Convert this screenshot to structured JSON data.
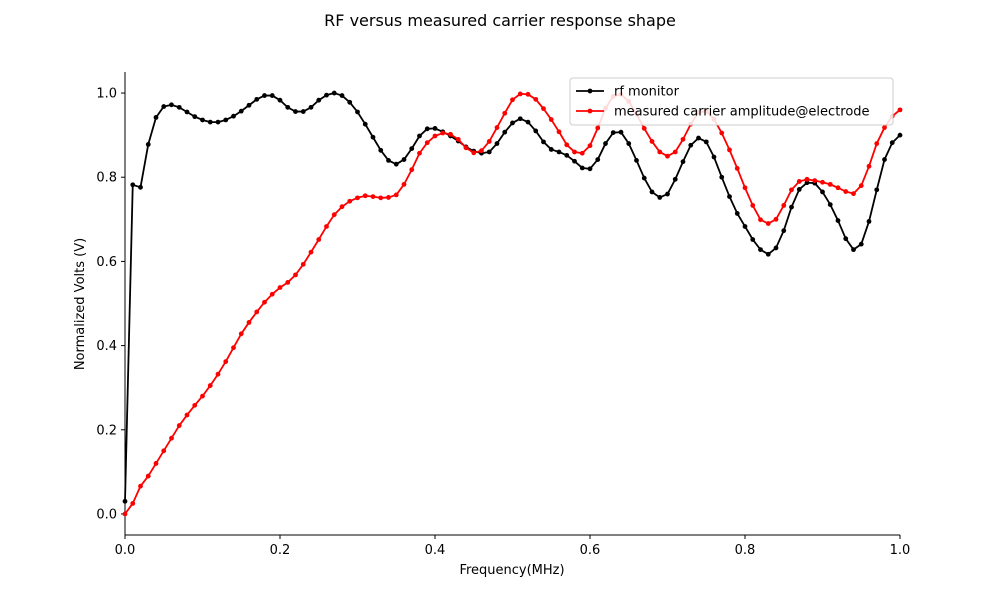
{
  "chart_data": {
    "type": "line",
    "title": "RF versus measured carrier response shape",
    "xlabel": "Frequency(MHz)",
    "ylabel": "Normalized Volts (V)",
    "xlim": [
      0,
      1.0
    ],
    "ylim": [
      -0.05,
      1.05
    ],
    "grid": false,
    "legend_position": "top-right",
    "x_ticks": [
      "0.0",
      "0.2",
      "0.4",
      "0.6",
      "0.8",
      "1.0"
    ],
    "y_ticks": [
      "0.0",
      "0.2",
      "0.4",
      "0.6",
      "0.8",
      "1.0"
    ],
    "x": [
      0.0,
      0.01,
      0.02,
      0.03,
      0.04,
      0.05,
      0.06,
      0.07,
      0.08,
      0.09,
      0.1,
      0.11,
      0.12,
      0.13,
      0.14,
      0.15,
      0.16,
      0.17,
      0.18,
      0.19,
      0.2,
      0.21,
      0.22,
      0.23,
      0.24,
      0.25,
      0.26,
      0.27,
      0.28,
      0.29,
      0.3,
      0.31,
      0.32,
      0.33,
      0.34,
      0.35,
      0.36,
      0.37,
      0.38,
      0.39,
      0.4,
      0.41,
      0.42,
      0.43,
      0.44,
      0.45,
      0.46,
      0.47,
      0.48,
      0.49,
      0.5,
      0.51,
      0.52,
      0.53,
      0.54,
      0.55,
      0.56,
      0.57,
      0.58,
      0.59,
      0.6,
      0.61,
      0.62,
      0.63,
      0.64,
      0.65,
      0.66,
      0.67,
      0.68,
      0.69,
      0.7,
      0.71,
      0.72,
      0.73,
      0.74,
      0.75,
      0.76,
      0.77,
      0.78,
      0.79,
      0.8,
      0.81,
      0.82,
      0.83,
      0.84,
      0.85,
      0.86,
      0.87,
      0.88,
      0.89,
      0.9,
      0.91,
      0.92,
      0.93,
      0.94,
      0.95,
      0.96,
      0.97,
      0.98,
      0.99,
      1.0
    ],
    "series": [
      {
        "name": "rf monitor",
        "color": "#000000",
        "values": [
          0.03,
          0.782,
          0.776,
          0.878,
          0.942,
          0.968,
          0.972,
          0.966,
          0.955,
          0.944,
          0.936,
          0.931,
          0.931,
          0.936,
          0.945,
          0.957,
          0.971,
          0.985,
          0.994,
          0.994,
          0.983,
          0.966,
          0.956,
          0.956,
          0.966,
          0.983,
          0.995,
          1.0,
          0.994,
          0.978,
          0.955,
          0.926,
          0.895,
          0.864,
          0.84,
          0.831,
          0.842,
          0.868,
          0.898,
          0.915,
          0.916,
          0.908,
          0.898,
          0.886,
          0.872,
          0.862,
          0.857,
          0.86,
          0.88,
          0.907,
          0.929,
          0.939,
          0.931,
          0.91,
          0.884,
          0.866,
          0.86,
          0.852,
          0.838,
          0.822,
          0.82,
          0.842,
          0.88,
          0.906,
          0.907,
          0.88,
          0.84,
          0.798,
          0.765,
          0.752,
          0.76,
          0.795,
          0.837,
          0.876,
          0.893,
          0.884,
          0.848,
          0.8,
          0.754,
          0.714,
          0.683,
          0.652,
          0.628,
          0.617,
          0.632,
          0.673,
          0.729,
          0.771,
          0.787,
          0.786,
          0.765,
          0.735,
          0.697,
          0.654,
          0.628,
          0.641,
          0.695,
          0.77,
          0.842,
          0.882,
          0.9
        ]
      },
      {
        "name": "measured carrier amplitude@electrode",
        "color": "#ff0000",
        "values": [
          0.0,
          0.025,
          0.066,
          0.09,
          0.12,
          0.15,
          0.18,
          0.21,
          0.235,
          0.258,
          0.28,
          0.305,
          0.332,
          0.362,
          0.395,
          0.428,
          0.455,
          0.48,
          0.503,
          0.522,
          0.538,
          0.55,
          0.568,
          0.593,
          0.622,
          0.652,
          0.683,
          0.711,
          0.73,
          0.743,
          0.751,
          0.756,
          0.754,
          0.751,
          0.752,
          0.758,
          0.783,
          0.818,
          0.857,
          0.882,
          0.898,
          0.905,
          0.902,
          0.89,
          0.87,
          0.858,
          0.863,
          0.885,
          0.918,
          0.952,
          0.984,
          0.998,
          0.997,
          0.985,
          0.963,
          0.937,
          0.908,
          0.877,
          0.86,
          0.857,
          0.875,
          0.917,
          0.964,
          0.992,
          0.997,
          0.98,
          0.95,
          0.916,
          0.885,
          0.86,
          0.85,
          0.86,
          0.89,
          0.926,
          0.954,
          0.957,
          0.938,
          0.905,
          0.865,
          0.821,
          0.775,
          0.733,
          0.699,
          0.69,
          0.7,
          0.733,
          0.77,
          0.79,
          0.795,
          0.792,
          0.788,
          0.783,
          0.775,
          0.766,
          0.761,
          0.78,
          0.826,
          0.88,
          0.918,
          0.945,
          0.96
        ]
      }
    ]
  }
}
